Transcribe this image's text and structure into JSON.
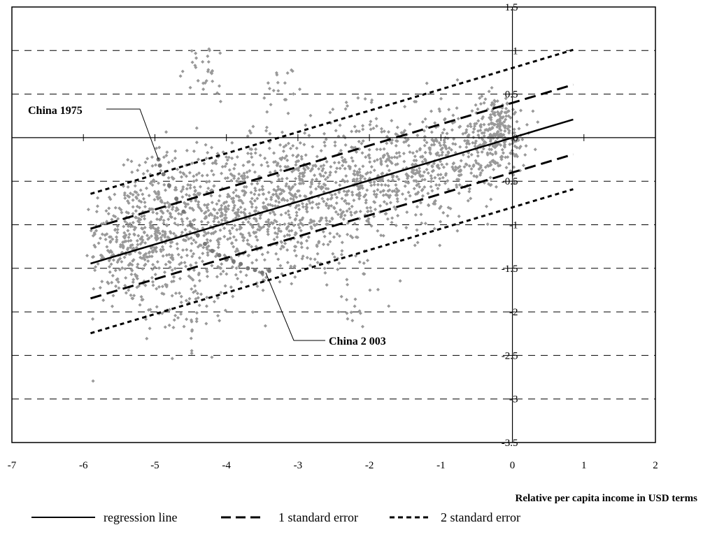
{
  "chart_data": {
    "type": "scatter",
    "title": "",
    "xlabel": "Relative per capita income in USD terms",
    "ylabel": "",
    "xlim": [
      -7,
      2
    ],
    "ylim": [
      -3.5,
      1.5
    ],
    "x_ticks": [
      "-7",
      "-6",
      "-5",
      "-4",
      "-3",
      "-2",
      "-1",
      "0",
      "1",
      "2"
    ],
    "y_ticks": [
      "1.5",
      "1",
      "0.5",
      "0",
      "-0.5",
      "-1",
      "-1.5",
      "-2",
      "-2.5",
      "-3",
      "-3.5"
    ],
    "grid": "horizontal dashed",
    "point_color": "#999999",
    "regression": {
      "intercept": 0.0,
      "slope": 0.245,
      "x_range": [
        -5.9,
        0.85
      ]
    },
    "se1_offset": 0.4,
    "se2_offset": 0.8,
    "series": [
      {
        "name": "regression line",
        "style": "solid"
      },
      {
        "name": "1 standard error",
        "style": "long-dash"
      },
      {
        "name": "2 standard error",
        "style": "short-dash"
      }
    ],
    "scatter_clusters": [
      {
        "cx": -5.4,
        "cy": -1.2,
        "sx": 0.3,
        "sy": 0.38,
        "n": 260
      },
      {
        "cx": -4.8,
        "cy": -1.0,
        "sx": 0.35,
        "sy": 0.42,
        "n": 300
      },
      {
        "cx": -4.0,
        "cy": -0.9,
        "sx": 0.4,
        "sy": 0.42,
        "n": 340
      },
      {
        "cx": -3.2,
        "cy": -0.75,
        "sx": 0.4,
        "sy": 0.4,
        "n": 320
      },
      {
        "cx": -2.4,
        "cy": -0.55,
        "sx": 0.4,
        "sy": 0.38,
        "n": 300
      },
      {
        "cx": -1.6,
        "cy": -0.4,
        "sx": 0.4,
        "sy": 0.34,
        "n": 260
      },
      {
        "cx": -0.8,
        "cy": -0.2,
        "sx": 0.35,
        "sy": 0.3,
        "n": 220
      },
      {
        "cx": -0.2,
        "cy": 0.05,
        "sx": 0.2,
        "sy": 0.22,
        "n": 240
      },
      {
        "cx": -4.3,
        "cy": 0.75,
        "sx": 0.2,
        "sy": 0.18,
        "n": 30
      },
      {
        "cx": -3.2,
        "cy": 0.6,
        "sx": 0.15,
        "sy": 0.2,
        "n": 18
      },
      {
        "cx": -4.6,
        "cy": -1.9,
        "sx": 0.25,
        "sy": 0.25,
        "n": 60
      },
      {
        "cx": -2.3,
        "cy": -1.9,
        "sx": 0.25,
        "sy": 0.3,
        "n": 25
      }
    ],
    "china_path": [
      [
        -4.95,
        -0.25
      ],
      [
        -4.93,
        -0.32
      ],
      [
        -4.88,
        -0.42
      ],
      [
        -4.8,
        -0.55
      ],
      [
        -4.7,
        -0.7
      ],
      [
        -4.6,
        -0.85
      ],
      [
        -4.5,
        -1.0
      ],
      [
        -4.4,
        -1.12
      ],
      [
        -4.3,
        -1.22
      ],
      [
        -4.2,
        -1.3
      ],
      [
        -4.1,
        -1.35
      ],
      [
        -4.0,
        -1.4
      ],
      [
        -3.9,
        -1.42
      ],
      [
        -3.8,
        -1.45
      ],
      [
        -3.7,
        -1.5
      ],
      [
        -3.6,
        -1.52
      ],
      [
        -3.5,
        -1.55
      ],
      [
        -3.4,
        -1.53
      ]
    ],
    "annotations": [
      {
        "id": "china-1975",
        "text": "China 1975",
        "point": [
          -4.95,
          -0.25
        ]
      },
      {
        "id": "china-2003",
        "text": "China 2 003",
        "point": [
          -3.45,
          -1.55
        ]
      }
    ]
  }
}
